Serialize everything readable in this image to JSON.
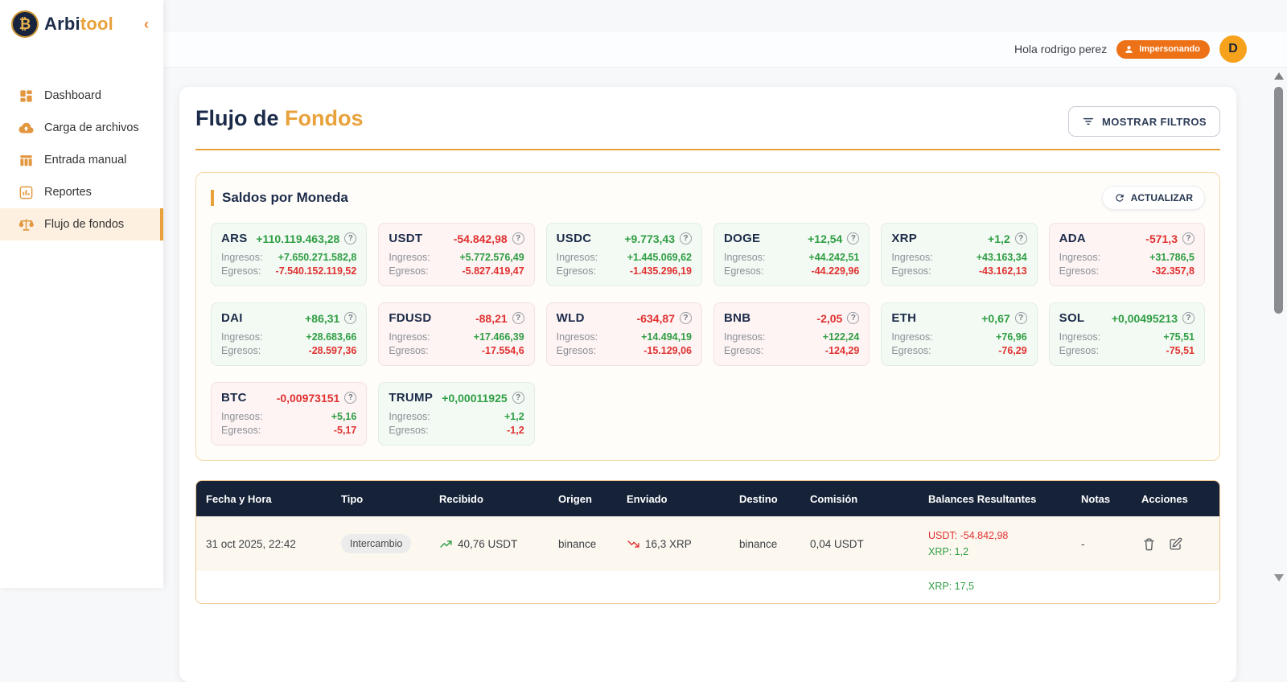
{
  "sidebar": {
    "brand_primary": "Arbi",
    "brand_secondary": "tool",
    "collapse_icon": "‹",
    "items": [
      {
        "label": "Dashboard",
        "icon": "dashboard-icon",
        "active": false
      },
      {
        "label": "Carga de archivos",
        "icon": "upload-cloud-icon",
        "active": false
      },
      {
        "label": "Entrada manual",
        "icon": "table-icon",
        "active": false
      },
      {
        "label": "Reportes",
        "icon": "bar-chart-icon",
        "active": false
      },
      {
        "label": "Flujo de fondos",
        "icon": "scale-icon",
        "active": true
      }
    ]
  },
  "header": {
    "greeting": "Hola rodrigo perez",
    "impersonating_badge": "Impersonando",
    "avatar_initial": "D"
  },
  "page": {
    "title_primary": "Flujo de",
    "title_accent": "Fondos",
    "show_filters_button": "MOSTRAR FILTROS"
  },
  "balances": {
    "section_title": "Saldos por Moneda",
    "refresh_button": "ACTUALIZAR",
    "ingresos_label": "Ingresos:",
    "egresos_label": "Egresos:",
    "cards": [
      {
        "symbol": "ARS",
        "net": "+110.119.463,28",
        "positive": true,
        "ingresos": "+7.650.271.582,8",
        "egresos": "-7.540.152.119,52"
      },
      {
        "symbol": "USDT",
        "net": "-54.842,98",
        "positive": false,
        "ingresos": "+5.772.576,49",
        "egresos": "-5.827.419,47"
      },
      {
        "symbol": "USDC",
        "net": "+9.773,43",
        "positive": true,
        "ingresos": "+1.445.069,62",
        "egresos": "-1.435.296,19"
      },
      {
        "symbol": "DOGE",
        "net": "+12,54",
        "positive": true,
        "ingresos": "+44.242,51",
        "egresos": "-44.229,96"
      },
      {
        "symbol": "XRP",
        "net": "+1,2",
        "positive": true,
        "ingresos": "+43.163,34",
        "egresos": "-43.162,13"
      },
      {
        "symbol": "ADA",
        "net": "-571,3",
        "positive": false,
        "ingresos": "+31.786,5",
        "egresos": "-32.357,8"
      },
      {
        "symbol": "DAI",
        "net": "+86,31",
        "positive": true,
        "ingresos": "+28.683,66",
        "egresos": "-28.597,36"
      },
      {
        "symbol": "FDUSD",
        "net": "-88,21",
        "positive": false,
        "ingresos": "+17.466,39",
        "egresos": "-17.554,6"
      },
      {
        "symbol": "WLD",
        "net": "-634,87",
        "positive": false,
        "ingresos": "+14.494,19",
        "egresos": "-15.129,06"
      },
      {
        "symbol": "BNB",
        "net": "-2,05",
        "positive": false,
        "ingresos": "+122,24",
        "egresos": "-124,29"
      },
      {
        "symbol": "ETH",
        "net": "+0,67",
        "positive": true,
        "ingresos": "+76,96",
        "egresos": "-76,29"
      },
      {
        "symbol": "SOL",
        "net": "+0,00495213",
        "positive": true,
        "ingresos": "+75,51",
        "egresos": "-75,51"
      },
      {
        "symbol": "BTC",
        "net": "-0,00973151",
        "positive": false,
        "ingresos": "+5,16",
        "egresos": "-5,17"
      },
      {
        "symbol": "TRUMP",
        "net": "+0,00011925",
        "positive": true,
        "ingresos": "+1,2",
        "egresos": "-1,2"
      }
    ]
  },
  "table": {
    "columns": [
      "Fecha y Hora",
      "Tipo",
      "Recibido",
      "Origen",
      "Enviado",
      "Destino",
      "Comisión",
      "Balances Resultantes",
      "Notas",
      "Acciones"
    ],
    "rows": [
      {
        "partial": false,
        "fecha": "31 oct 2025, 22:42",
        "tipo": "Intercambio",
        "recibido": "40,76 USDT",
        "origen": "binance",
        "enviado": "16,3 XRP",
        "destino": "binance",
        "comision": "0,04 USDT",
        "balances": [
          {
            "text": "USDT: -54.842,98",
            "positive": false
          },
          {
            "text": "XRP: 1,2",
            "positive": true
          }
        ],
        "notas": "-"
      },
      {
        "partial": true,
        "fecha": "",
        "tipo": "",
        "recibido": "",
        "origen": "",
        "enviado": "",
        "destino": "",
        "comision": "",
        "notas": "",
        "balances": [
          {
            "text": "XRP: 17,5",
            "positive": true
          }
        ]
      }
    ]
  },
  "colors": {
    "accent_orange": "#e9a23b",
    "badge_orange": "#ed7117",
    "avatar_orange": "#f6a21c",
    "navy": "#152238",
    "positive_green": "#2f9e44",
    "negative_red": "#e03131"
  }
}
